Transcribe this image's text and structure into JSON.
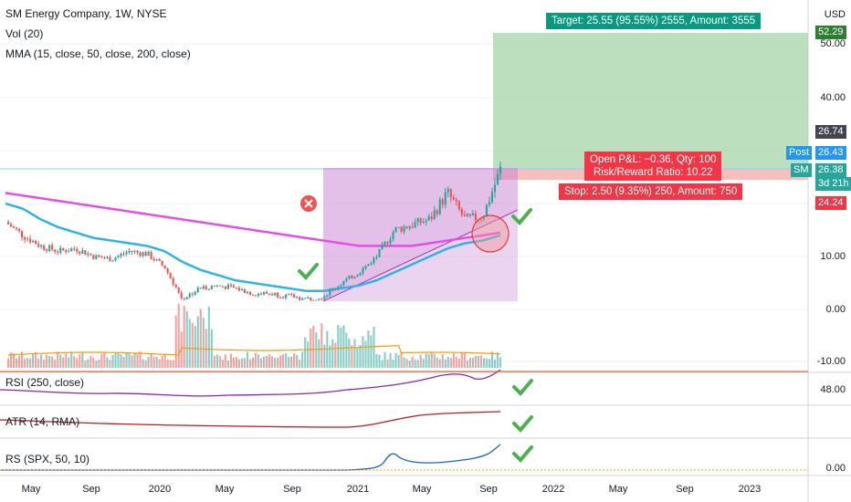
{
  "header": {
    "title": "SM Energy Company, 1W, NYSE",
    "vol": "Vol (20)",
    "mma": "MMA (15, close, 50, close, 200, close)",
    "currency": "USD"
  },
  "panes": {
    "rsi": "RSI (250, close)",
    "atr": "ATR (14, RMA)",
    "rs": "RS (SPX, 50, 10)"
  },
  "price_axis": {
    "ticks": [
      "50.00",
      "40.00",
      "10.00",
      "0.00",
      "-10.00"
    ],
    "rsi_tick": "48.00",
    "rs_tick": "0.00"
  },
  "badges": {
    "target": "52.29",
    "high": "26.74",
    "post_label": "Post",
    "post": "26.43",
    "symbol": "SM",
    "last": "26.38",
    "countdown": "3d 21h",
    "stop": "24.24"
  },
  "position": {
    "target_text": "Target: 25.55 (95.55%) 2555, Amount: 3555",
    "pnl_text": "Open P&L: −0.36, Qty: 100",
    "rr_text": "Risk/Reward Ratio: 10.22",
    "stop_text": "Stop: 2.50 (9.35%) 250, Amount: 750"
  },
  "time_axis": [
    "May",
    "Sep",
    "2020",
    "May",
    "Sep",
    "2021",
    "May",
    "Sep",
    "2022",
    "May",
    "Sep",
    "2023"
  ],
  "colors": {
    "up": "#26a69a",
    "down": "#ef5350",
    "ma50": "#2fb2e8",
    "ma200": "#e54ee5",
    "target_fill": "#a5d6a7",
    "stop_fill": "#f7b2b2",
    "rsi": "#8e24aa",
    "atr": "#b71c1c",
    "rs": "#1565c0",
    "check": "#4caf50"
  },
  "chart_data": {
    "type": "candlestick",
    "interval": "1W",
    "x": [
      "2019-05",
      "2019-06",
      "2019-07",
      "2019-08",
      "2019-09",
      "2019-10",
      "2019-11",
      "2019-12",
      "2020-01",
      "2020-02",
      "2020-03",
      "2020-04",
      "2020-05",
      "2020-06",
      "2020-07",
      "2020-08",
      "2020-09",
      "2020-10",
      "2020-11",
      "2020-12",
      "2021-01",
      "2021-02",
      "2021-03",
      "2021-04",
      "2021-05",
      "2021-06",
      "2021-07",
      "2021-08",
      "2021-09"
    ],
    "close": [
      16.5,
      14.0,
      12.0,
      11.0,
      11.5,
      10.0,
      9.5,
      11.0,
      10.5,
      8.0,
      2.0,
      4.0,
      4.5,
      4.0,
      3.0,
      3.0,
      2.5,
      2.0,
      2.5,
      5.0,
      7.0,
      10.0,
      15.0,
      16.0,
      17.0,
      22.0,
      17.0,
      17.5,
      26.4
    ],
    "ma50": [
      20.0,
      19.0,
      17.0,
      15.5,
      14.5,
      13.5,
      13.0,
      12.5,
      12.0,
      11.0,
      9.0,
      7.5,
      6.5,
      5.5,
      5.0,
      4.5,
      4.0,
      3.5,
      3.5,
      4.0,
      4.5,
      5.5,
      7.0,
      8.5,
      10.0,
      11.5,
      12.5,
      13.0,
      14.0
    ],
    "ma200": [
      22.0,
      21.5,
      21.0,
      20.5,
      20.0,
      19.5,
      19.0,
      18.5,
      18.0,
      17.5,
      17.0,
      16.5,
      16.0,
      15.5,
      15.0,
      14.5,
      14.0,
      13.5,
      13.0,
      12.5,
      12.0,
      12.0,
      12.0,
      12.0,
      12.5,
      13.0,
      13.5,
      14.0,
      14.5
    ],
    "long_position": {
      "entry": 26.74,
      "stop": 24.24,
      "target": 52.29,
      "qty": 100
    }
  }
}
